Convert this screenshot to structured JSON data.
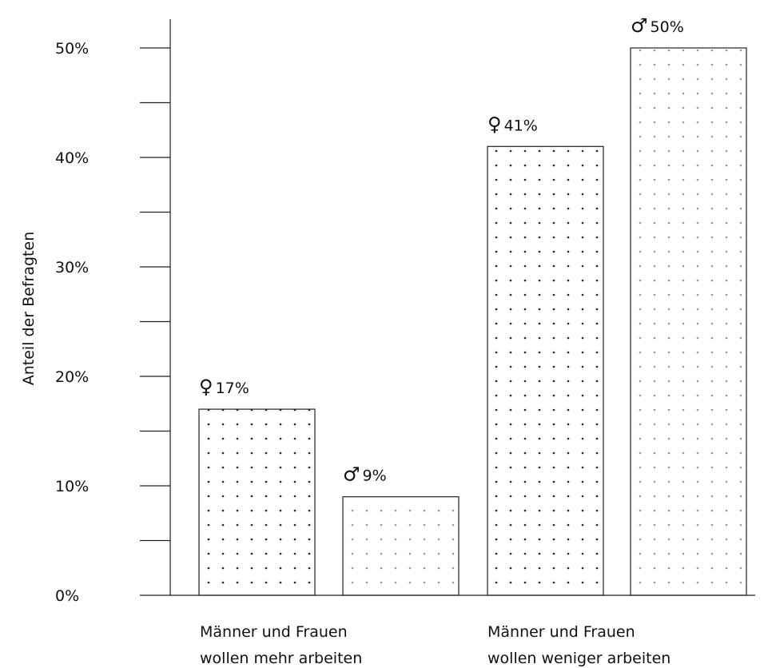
{
  "chart_data": {
    "type": "bar",
    "ylabel": "Anteil der Befragten",
    "ylim": [
      0,
      50
    ],
    "yticks": [
      0,
      10,
      20,
      30,
      40,
      50
    ],
    "ytick_labels": [
      "0%",
      "10%",
      "20%",
      "30%",
      "40%",
      "50%"
    ],
    "minor_yticks": [
      5,
      15,
      25,
      35,
      45
    ],
    "grid": false,
    "groups": [
      {
        "label_lines": [
          "Männer und Frauen",
          "wollen mehr arbeiten"
        ],
        "bars": [
          {
            "symbol": "♀",
            "value": 17,
            "label": "17%",
            "pattern": "dark-dots"
          },
          {
            "symbol": "♂",
            "value": 9,
            "label": "9%",
            "pattern": "light-dots"
          }
        ]
      },
      {
        "label_lines": [
          "Männer und Frauen",
          "wollen weniger arbeiten"
        ],
        "bars": [
          {
            "symbol": "♀",
            "value": 41,
            "label": "41%",
            "pattern": "dark-dots"
          },
          {
            "symbol": "♂",
            "value": 50,
            "label": "50%",
            "pattern": "light-dots"
          }
        ]
      }
    ],
    "colors": {
      "dark_dot": "#222222",
      "light_dot": "#9a9a9a",
      "bar_fill": "#ffffff",
      "outline": "#222222"
    }
  }
}
